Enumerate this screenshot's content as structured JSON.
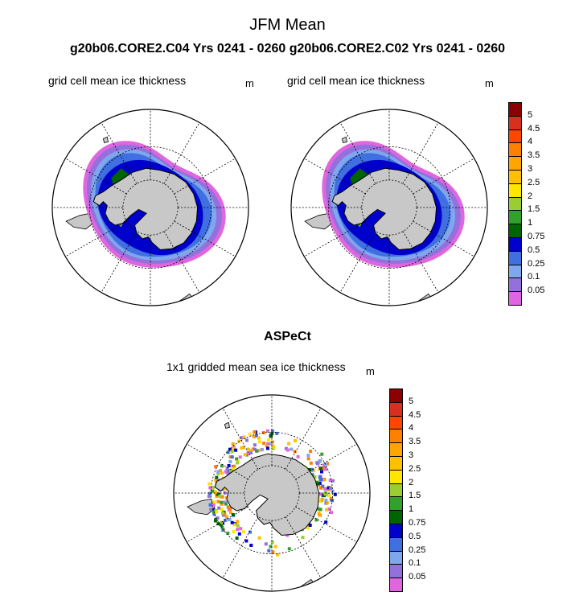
{
  "header": {
    "title": "JFM Mean",
    "subtitle": "g20b06.CORE2.C04  Yrs 0241 - 0260 g20b06.CORE2.C02  Yrs 0241 - 0260"
  },
  "panels": [
    {
      "title": "grid cell mean ice thickness",
      "unit": "m"
    },
    {
      "title": "grid cell mean ice thickness",
      "unit": "m"
    }
  ],
  "bottom": {
    "heading": "ASPeCt",
    "title": "1x1 gridded mean sea ice thickness",
    "unit": "m"
  },
  "colorbar": {
    "levels": [
      "5",
      "4.5",
      "4",
      "3.5",
      "3",
      "2.5",
      "2",
      "1.5",
      "1",
      "0.75",
      "0.5",
      "0.25",
      "0.1",
      "0.05"
    ],
    "colors": [
      "#8b0000",
      "#d7301f",
      "#ff4500",
      "#ff7f00",
      "#ffa500",
      "#ffc000",
      "#ffe600",
      "#9acd32",
      "#33a02c",
      "#006400",
      "#0000cd",
      "#3f6fe0",
      "#7fa7ee",
      "#9370db",
      "#e066e0"
    ]
  },
  "legend": {
    "land": "#c8c8c8",
    "ocean": "#ffffff"
  }
}
